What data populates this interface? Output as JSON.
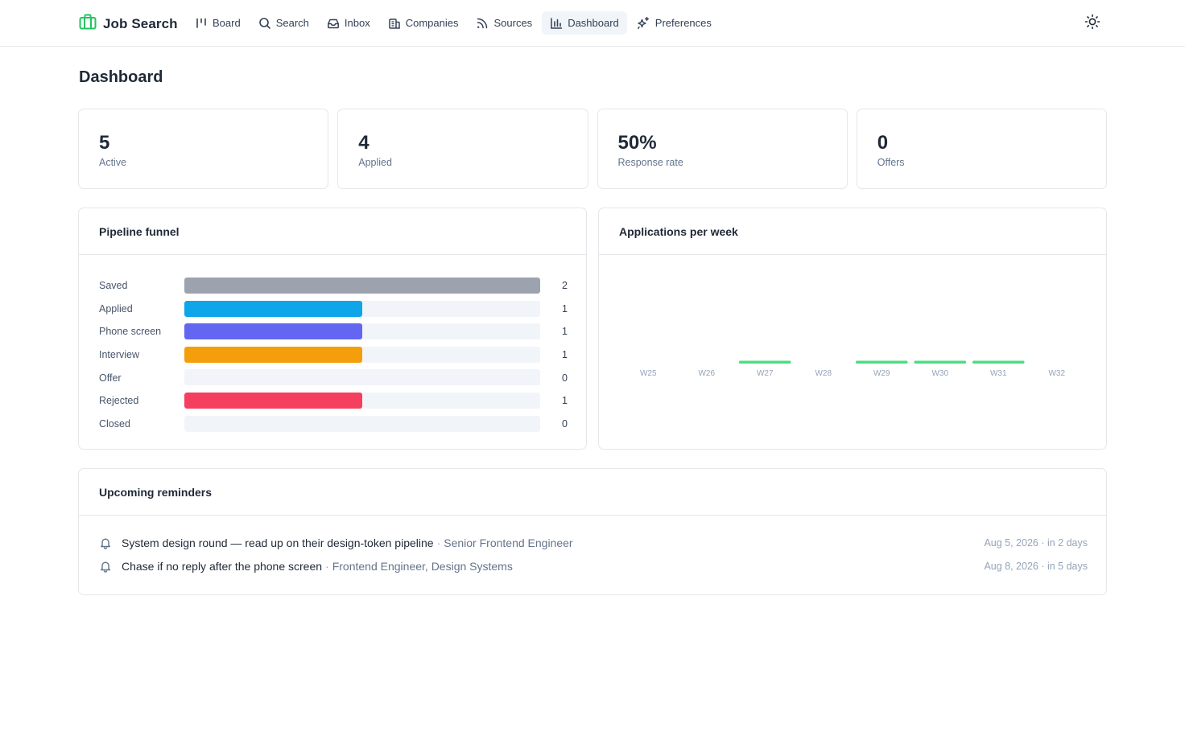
{
  "app": {
    "title": "Job Search"
  },
  "nav": [
    {
      "label": "Board",
      "icon": "board-icon",
      "active": false
    },
    {
      "label": "Search",
      "icon": "search-icon",
      "active": false
    },
    {
      "label": "Inbox",
      "icon": "inbox-icon",
      "active": false
    },
    {
      "label": "Companies",
      "icon": "building-icon",
      "active": false
    },
    {
      "label": "Sources",
      "icon": "rss-icon",
      "active": false
    },
    {
      "label": "Dashboard",
      "icon": "bar-chart-icon",
      "active": true
    },
    {
      "label": "Preferences",
      "icon": "sparkles-icon",
      "active": false
    }
  ],
  "page": {
    "title": "Dashboard"
  },
  "stats": [
    {
      "value": "5",
      "label": "Active"
    },
    {
      "value": "4",
      "label": "Applied"
    },
    {
      "value": "50%",
      "label": "Response rate"
    },
    {
      "value": "0",
      "label": "Offers"
    }
  ],
  "funnel": {
    "title": "Pipeline funnel",
    "rows": [
      {
        "label": "Saved",
        "count": 2,
        "color": "#9ca3af"
      },
      {
        "label": "Applied",
        "count": 1,
        "color": "#0ea5e9"
      },
      {
        "label": "Phone screen",
        "count": 1,
        "color": "#6366f1"
      },
      {
        "label": "Interview",
        "count": 1,
        "color": "#f59e0b"
      },
      {
        "label": "Offer",
        "count": 0,
        "color": "#10b981"
      },
      {
        "label": "Rejected",
        "count": 1,
        "color": "#f43f5e"
      },
      {
        "label": "Closed",
        "count": 0,
        "color": "#64748b"
      }
    ]
  },
  "weekly": {
    "title": "Applications per week",
    "bar_color": "#4ade80"
  },
  "chart_data": {
    "type": "bar",
    "categories": [
      "W25",
      "W26",
      "W27",
      "W28",
      "W29",
      "W30",
      "W31",
      "W32"
    ],
    "values": [
      0,
      0,
      1,
      0,
      1,
      1,
      1,
      0
    ],
    "title": "Applications per week",
    "xlabel": "",
    "ylabel": ""
  },
  "reminders": {
    "title": "Upcoming reminders",
    "items": [
      {
        "text": "System design round — read up on their design-token pipeline",
        "job": "Senior Frontend Engineer",
        "when": "Aug 5, 2026 · in 2 days"
      },
      {
        "text": "Chase if no reply after the phone screen",
        "job": "Frontend Engineer, Design Systems",
        "when": "Aug 8, 2026 · in 5 days"
      }
    ]
  }
}
